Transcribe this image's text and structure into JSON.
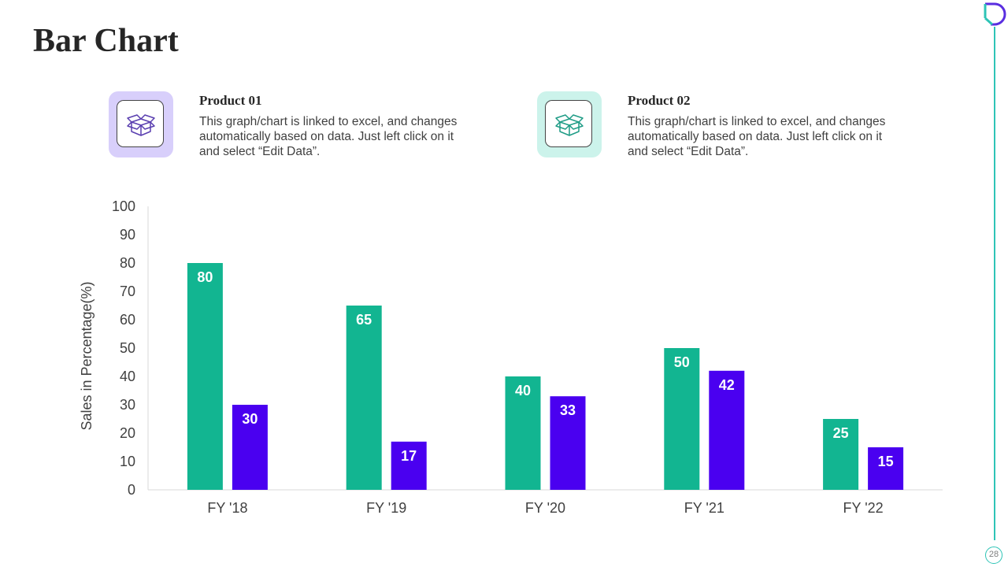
{
  "slide": {
    "title": "Bar Chart",
    "page_number": "28"
  },
  "colors": {
    "product_01": "#12b591",
    "product_02": "#4a00f0",
    "accent": "#2ec4b6"
  },
  "products": [
    {
      "name": "Product 01",
      "icon": "box-icon",
      "description": "This graph/chart is linked to excel, and changes automatically based on data. Just left click on it and select “Edit Data”."
    },
    {
      "name": "Product 02",
      "icon": "box-icon",
      "description": "This graph/chart is linked to excel, and changes automatically based on data. Just left click on it and select “Edit Data”."
    }
  ],
  "chart_data": {
    "type": "bar",
    "title": "",
    "xlabel": "",
    "ylabel": "Sales in Percentage(%)",
    "ylim": [
      0,
      100
    ],
    "yticks": [
      0,
      10,
      20,
      30,
      40,
      50,
      60,
      70,
      80,
      90,
      100
    ],
    "categories": [
      "FY '18",
      "FY '19",
      "FY '20",
      "FY '21",
      "FY '22"
    ],
    "series": [
      {
        "name": "Product 01",
        "values": [
          80,
          65,
          40,
          50,
          25
        ]
      },
      {
        "name": "Product 02",
        "values": [
          30,
          17,
          33,
          42,
          15
        ]
      }
    ],
    "grid": false,
    "data_labels": true
  }
}
